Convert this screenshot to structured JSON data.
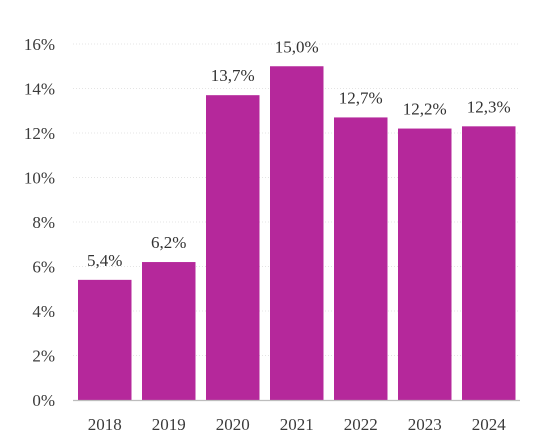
{
  "chart_data": {
    "type": "bar",
    "title": "",
    "xlabel": "",
    "ylabel": "",
    "categories": [
      "2018",
      "2019",
      "2020",
      "2021",
      "2022",
      "2023",
      "2024"
    ],
    "values": [
      5.4,
      6.2,
      13.7,
      15.0,
      12.7,
      12.2,
      12.3
    ],
    "data_labels": [
      "5,4%",
      "6,2%",
      "13,7%",
      "15,0%",
      "12,7%",
      "12,2%",
      "12,3%"
    ],
    "ylim": [
      0,
      16
    ],
    "yticks": [
      0,
      2,
      4,
      6,
      8,
      10,
      12,
      14,
      16
    ],
    "ytick_labels": [
      "0%",
      "2%",
      "4%",
      "6%",
      "8%",
      "10%",
      "12%",
      "14%",
      "16%"
    ],
    "grid": true,
    "legend": "none",
    "bar_color": "#b5289b"
  }
}
